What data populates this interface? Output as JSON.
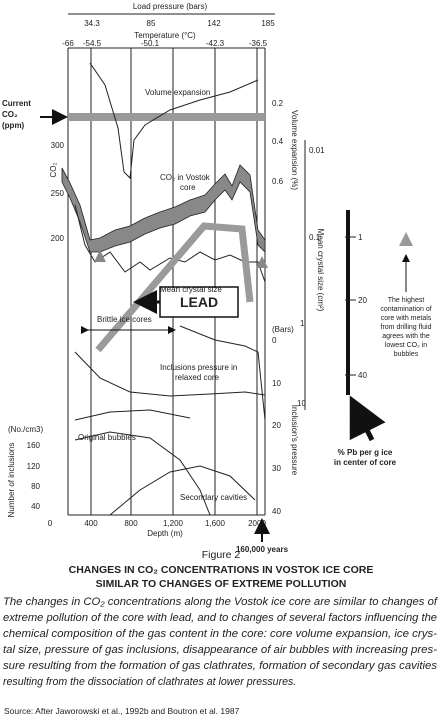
{
  "figure": {
    "top_axis": {
      "title": "Load pressure (bars)",
      "ticks": [
        "34.3",
        "85",
        "142",
        "185"
      ]
    },
    "temperature_axis": {
      "title": "Temperature (°C)",
      "ticks": [
        "-66",
        "-54.5",
        "-50.1",
        "-42.3",
        "-36.5"
      ]
    },
    "left_axis": {
      "current_label": [
        "Current",
        "CO₂",
        "(ppm)"
      ],
      "title": "CO₂",
      "ticks": [
        "300",
        "250",
        "200"
      ]
    },
    "inclusions_axis": {
      "unit": "(No./cm3)",
      "title": "Number of inclusions",
      "ticks": [
        "160",
        "120",
        "80",
        "40"
      ]
    },
    "volume_axis": {
      "title": "Volume expansion (%)",
      "ticks": [
        "0.2",
        "0.4",
        "0.6"
      ]
    },
    "crystal_axis": {
      "title": "Mean crystal size (cm²)",
      "ticks": [
        "0.01",
        "0.1",
        "1",
        "10"
      ]
    },
    "pressure_axis": {
      "unit": "(Bars)",
      "title": "Inclusion's pressure",
      "ticks": [
        "0",
        "10",
        "20",
        "30",
        "40"
      ]
    },
    "depth_axis": {
      "title": "Depth (m)",
      "ticks": [
        "0",
        "400",
        "800",
        "1,200",
        "1,600",
        "2000"
      ],
      "note": "160,000 years"
    },
    "annotations": {
      "volume": "Volume expansion",
      "co2": [
        "CO₂ in Vostok",
        "core"
      ],
      "crystal": "Mean crystal size",
      "lead": "LEAD",
      "brittle": "Brittle ice cores",
      "inclusions": [
        "Inclusions pressure in",
        "relaxed core"
      ],
      "bubbles": "Original bubbles",
      "cavities": "Secondary cavities"
    },
    "pb_scale": {
      "ticks": [
        "1",
        "20",
        "40"
      ],
      "label": [
        "% Pb per g ice",
        "in center of core"
      ],
      "note": [
        "The highest",
        "contamination of",
        "core with metals",
        "from drilling fluid",
        "agrees with the",
        "lowest CO₂ in",
        "bubbles"
      ]
    }
  },
  "caption": {
    "label": "Figure 2",
    "title": [
      "CHANGES IN CO₂ CONCENTRATIONS IN VOSTOK ICE CORE",
      "SIMILAR TO CHANGES OF EXTREME POLLUTION"
    ],
    "text": [
      "The changes in CO₂ concentrations along the Vostok ice core are similar to changes of",
      "extreme pollution of the core with lead, and to changes of several factors influencing the",
      "chemical composition of the gas content in the core: core volume expansion, ice crys-",
      "tal size, pressure of gas inclusions, disappearance of air bubbles with increasing pres-",
      "sure resulting from the formation of gas clathrates, formation of secondary gas cavities",
      "resulting from the dissociation of clathrates at lower pressures."
    ],
    "source": "Source: After Jaworowski et al., 1992b and Boutron et al. 1987"
  }
}
